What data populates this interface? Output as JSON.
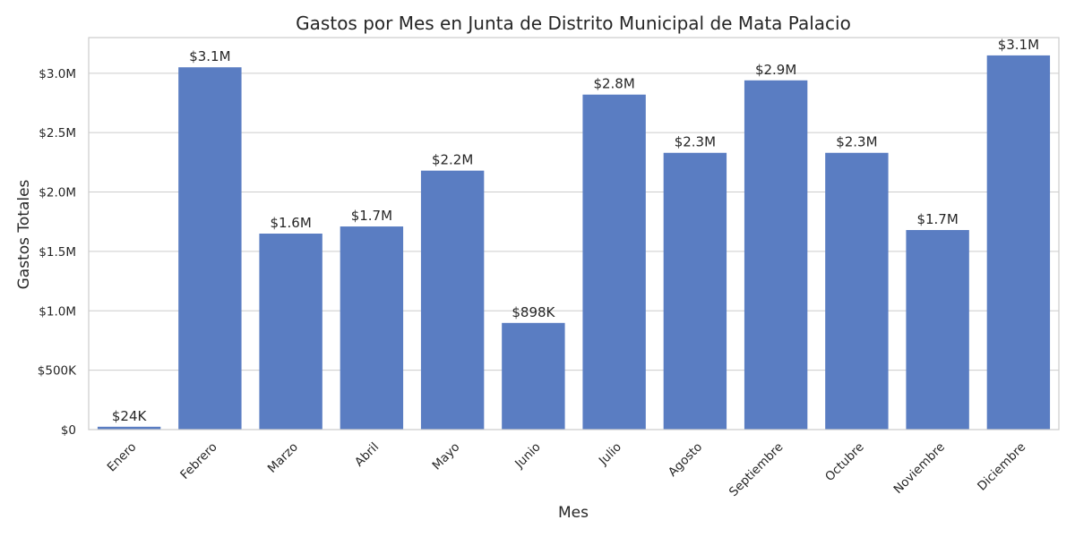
{
  "chart_data": {
    "type": "bar",
    "title": "Gastos por Mes en Junta de Distrito Municipal de Mata Palacio",
    "xlabel": "Mes",
    "ylabel": "Gastos Totales",
    "categories": [
      "Enero",
      "Febrero",
      "Marzo",
      "Abril",
      "Mayo",
      "Junio",
      "Julio",
      "Agosto",
      "Septiembre",
      "Octubre",
      "Noviembre",
      "Diciembre"
    ],
    "values": [
      24000,
      3050000,
      1650000,
      1710000,
      2180000,
      898000,
      2820000,
      2330000,
      2940000,
      2330000,
      1680000,
      3150000
    ],
    "data_labels": [
      "$24K",
      "$3.1M",
      "$1.6M",
      "$1.7M",
      "$2.2M",
      "$898K",
      "$2.8M",
      "$2.3M",
      "$2.9M",
      "$2.3M",
      "$1.7M",
      "$3.1M"
    ],
    "yticks": [
      0,
      500000,
      1000000,
      1500000,
      2000000,
      2500000,
      3000000
    ],
    "ytick_labels": [
      "$0",
      "$500K",
      "$1.0M",
      "$1.5M",
      "$2.0M",
      "$2.5M",
      "$3.0M"
    ],
    "ylim": [
      0,
      3300000
    ],
    "grid": "horizontal",
    "bar_color": "#5a7dc2",
    "x_tick_rotation": 45
  }
}
